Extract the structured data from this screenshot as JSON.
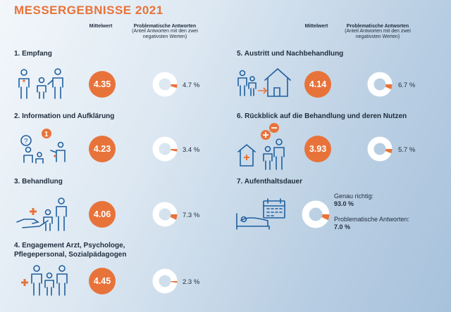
{
  "title": "MESSERGEBNISSE 2021",
  "headers": {
    "mean": "Mittelwert",
    "problem": "Problematische Antworten",
    "problem_sub": "(Anteil Antworten mit den zwei negativsten Werten)"
  },
  "colors": {
    "accent": "#e8733a",
    "icon": "#1f5f9e",
    "donut_bg": "#ffffff"
  },
  "chart_data": {
    "type": "donut-scorecard",
    "title": "MESSERGEBNISSE 2021",
    "metrics": [
      "Mittelwert",
      "Problematische Antworten"
    ],
    "sections": [
      {
        "label": "1. Empfang",
        "mean": "4.35",
        "problem_pct": 4.7,
        "problem_label": "4.7 %"
      },
      {
        "label": "2. Information und Aufklärung",
        "mean": "4.23",
        "problem_pct": 3.4,
        "problem_label": "3.4 %"
      },
      {
        "label": "3. Behandlung",
        "mean": "4.06",
        "problem_pct": 7.3,
        "problem_label": "7.3 %"
      },
      {
        "label": "4. Engagement Arzt, Psychologe, Pflegepersonal, Sozialpädagogen",
        "mean": "4.45",
        "problem_pct": 2.3,
        "problem_label": "2.3 %"
      },
      {
        "label": "5. Austritt und Nachbehandlung",
        "mean": "4.14",
        "problem_pct": 6.7,
        "problem_label": "6.7 %"
      },
      {
        "label": "6. Rückblick auf die Behandlung und deren Nutzen",
        "mean": "3.93",
        "problem_pct": 5.7,
        "problem_label": "5.7 %"
      }
    ],
    "duration": {
      "label": "7. Aufenthaltsdauer",
      "correct_label": "Genau richtig:",
      "correct_value": "93.0 %",
      "correct_pct": 93.0,
      "problem_label": "Problematische Antworten:",
      "problem_value": "7.0 %",
      "problem_pct": 7.0
    }
  },
  "sec4_line1": "4. Engagement Arzt, Psychologe,",
  "sec4_line2": "Pflegepersonal, Sozialpädagogen"
}
